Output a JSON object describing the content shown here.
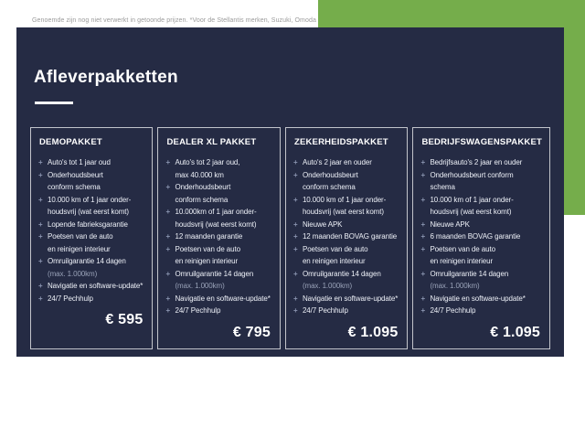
{
  "page": {
    "title": "Afleverpakketten",
    "footnote": "Genoemde zijn nog niet verwerkt in getoonde prijzen. *Voor de Stellantis merken, Suzuki, Omoda & Jaecoo."
  },
  "colors": {
    "panel_navy": "#252b44",
    "accent_green": "#75ad4b",
    "plus_icon": "#8b95b0",
    "note_text": "#99a2b8"
  },
  "plus_glyph": "+",
  "packages": [
    {
      "name": "DEMOPAKKET",
      "price": "€ 595",
      "items": [
        {
          "text": "Auto's tot 1 jaar oud"
        },
        {
          "text": "Onderhoudsbeurt\nconform schema"
        },
        {
          "text": "10.000 km of 1 jaar onder-\nhoudsvrij (wat eerst komt)"
        },
        {
          "text": "Lopende fabrieksgarantie"
        },
        {
          "text": "Poetsen van de auto\nen reinigen interieur"
        },
        {
          "text": "Omruilgarantie 14 dagen",
          "note": "(max. 1.000km)"
        },
        {
          "text": "Navigatie en software-update*"
        },
        {
          "text": "24/7 Pechhulp"
        }
      ]
    },
    {
      "name": "DEALER XL PAKKET",
      "price": "€ 795",
      "items": [
        {
          "text": "Auto's tot 2 jaar oud,\nmax 40.000 km"
        },
        {
          "text": "Onderhoudsbeurt\nconform schema"
        },
        {
          "text": "10.000km of 1 jaar onder-\nhoudsvrij (wat eerst komt)"
        },
        {
          "text": "12 maanden garantie"
        },
        {
          "text": "Poetsen van de auto\nen reinigen interieur"
        },
        {
          "text": "Omruilgarantie 14 dagen",
          "note": "(max. 1.000km)"
        },
        {
          "text": "Navigatie en software-update*"
        },
        {
          "text": "24/7 Pechhulp"
        }
      ]
    },
    {
      "name": "ZEKERHEIDSPAKKET",
      "price": "€ 1.095",
      "items": [
        {
          "text": "Auto's 2 jaar en ouder"
        },
        {
          "text": "Onderhoudsbeurt\nconform schema"
        },
        {
          "text": "10.000 km of 1 jaar onder-\nhoudsvrij (wat eerst komt)"
        },
        {
          "text": "Nieuwe APK"
        },
        {
          "text": "12 maanden BOVAG garantie"
        },
        {
          "text": "Poetsen van de auto\nen reinigen interieur"
        },
        {
          "text": "Omruilgarantie 14 dagen",
          "note": "(max. 1.000km)"
        },
        {
          "text": "Navigatie en software-update*"
        },
        {
          "text": "24/7 Pechhulp"
        }
      ]
    },
    {
      "name": "BEDRIJFSWAGENSPAKKET",
      "price": "€ 1.095",
      "items": [
        {
          "text": "Bedrijfsauto's 2 jaar en ouder"
        },
        {
          "text": "Onderhoudsbeurt conform\nschema"
        },
        {
          "text": "10.000 km of 1 jaar onder-\nhoudsvrij (wat eerst komt)"
        },
        {
          "text": "Nieuwe APK"
        },
        {
          "text": "6 maanden BOVAG garantie"
        },
        {
          "text": "Poetsen van de auto\nen reinigen interieur"
        },
        {
          "text": "Omruilgarantie 14 dagen",
          "note": "(max. 1.000km)"
        },
        {
          "text": "Navigatie en software-update*"
        },
        {
          "text": "24/7 Pechhulp"
        }
      ]
    }
  ]
}
